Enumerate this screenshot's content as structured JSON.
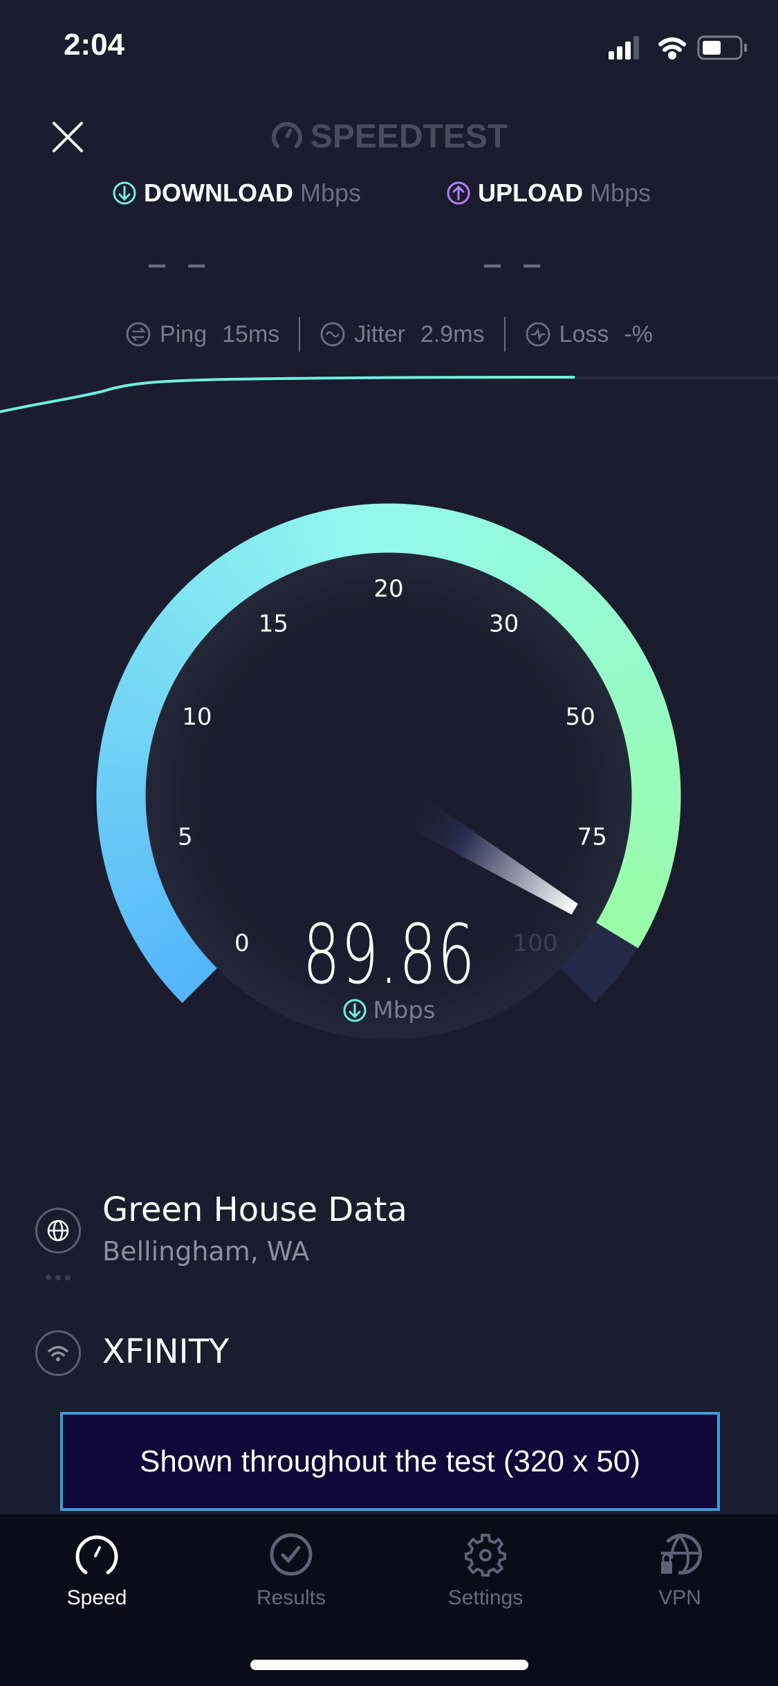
{
  "status_bar": {
    "time": "2:04",
    "signal_bars": 3,
    "battery_level_pct": 45
  },
  "header": {
    "close_icon": "close-icon",
    "logo": "SPEEDTEST"
  },
  "results": {
    "download": {
      "label": "DOWNLOAD",
      "unit": "Mbps",
      "value": "– –",
      "color": "#6ff0e0"
    },
    "upload": {
      "label": "UPLOAD",
      "unit": "Mbps",
      "value": "– –",
      "color": "#b57cff"
    }
  },
  "stats": {
    "ping": {
      "label": "Ping",
      "value": "15",
      "unit": "ms"
    },
    "jitter": {
      "label": "Jitter",
      "value": "2.9",
      "unit": "ms"
    },
    "loss": {
      "label": "Loss",
      "value": "-",
      "unit": "%"
    }
  },
  "gauge": {
    "labels": [
      "0",
      "5",
      "10",
      "15",
      "20",
      "30",
      "50",
      "75",
      "100"
    ],
    "scale": [
      0,
      5,
      10,
      15,
      20,
      30,
      50,
      75,
      100
    ],
    "current": 89.86,
    "current_text": "89.86",
    "unit": "Mbps",
    "colors": {
      "start": "#55b4fa",
      "mid": "#92f8ee",
      "end": "#9afca6",
      "track": "#252a48"
    }
  },
  "server": {
    "name": "Green House Data",
    "location": "Bellingham, WA"
  },
  "isp": {
    "name": "XFINITY"
  },
  "ad": {
    "text": "Shown throughout the test (320 x 50)"
  },
  "tabs": [
    {
      "label": "Speed",
      "icon": "speedometer-icon",
      "active": true
    },
    {
      "label": "Results",
      "icon": "check-circle-icon",
      "active": false
    },
    {
      "label": "Settings",
      "icon": "gear-icon",
      "active": false
    },
    {
      "label": "VPN",
      "icon": "globe-lock-icon",
      "active": false
    }
  ]
}
